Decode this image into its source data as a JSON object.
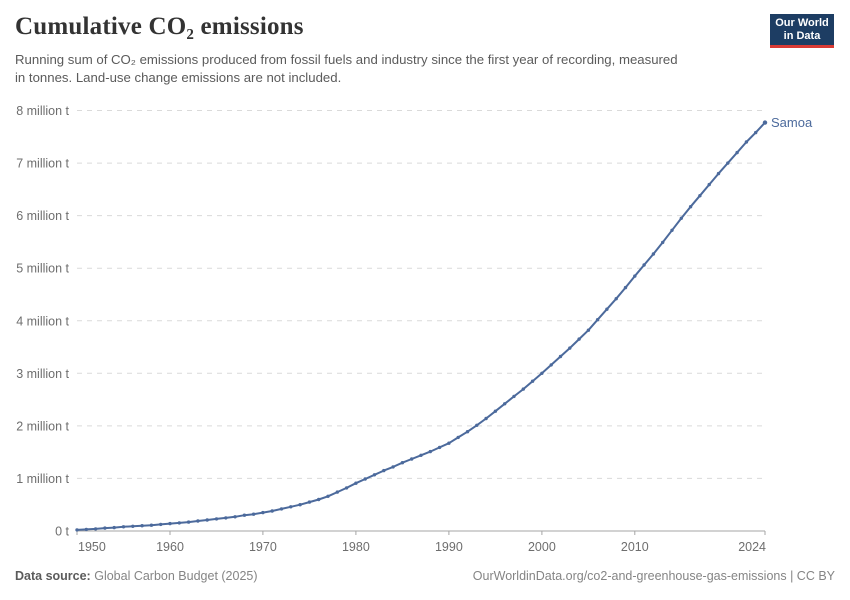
{
  "header": {
    "title": "Cumulative CO₂ emissions",
    "subtitle": "Running sum of CO₂ emissions produced from fossil fuels and industry since the first year of recording, measured in tonnes. Land-use change emissions are not included.",
    "logo_line1": "Our World",
    "logo_line2": "in Data"
  },
  "footer": {
    "source_label": "Data source:",
    "source_value": "Global Carbon Budget (2025)",
    "link": "OurWorldinData.org/co2-and-greenhouse-gas-emissions | CC BY"
  },
  "colors": {
    "line": "#4c6a9c",
    "end_label": "#4c6a9c",
    "grid": "#dadada",
    "axis_line": "#a5a5a5",
    "axis_text": "#6e6e6e",
    "title_text": "#333333",
    "subtitle_text": "#5b5b5b",
    "footer_text": "#858585",
    "logo_bg": "#1d3d63",
    "logo_underline": "#d93a34"
  },
  "chart_data": {
    "type": "line",
    "title": "Cumulative CO₂ emissions",
    "unit": "tonnes",
    "end_label": "Samoa",
    "grid": "horizontal-dashed",
    "legend_position": "end-of-line-label",
    "xlim": [
      1950,
      2024
    ],
    "ylim_million_t": [
      0,
      8
    ],
    "x_ticks": [
      1950,
      1960,
      1970,
      1980,
      1990,
      2000,
      2010,
      2024
    ],
    "y_ticks": [
      {
        "value": 0,
        "label": "0 t"
      },
      {
        "value": 1,
        "label": "1 million t"
      },
      {
        "value": 2,
        "label": "2 million t"
      },
      {
        "value": 3,
        "label": "3 million t"
      },
      {
        "value": 4,
        "label": "4 million t"
      },
      {
        "value": 5,
        "label": "5 million t"
      },
      {
        "value": 6,
        "label": "6 million t"
      },
      {
        "value": 7,
        "label": "7 million t"
      },
      {
        "value": 8,
        "label": "8 million t"
      }
    ],
    "x": [
      1950,
      1951,
      1952,
      1953,
      1954,
      1955,
      1956,
      1957,
      1958,
      1959,
      1960,
      1961,
      1962,
      1963,
      1964,
      1965,
      1966,
      1967,
      1968,
      1969,
      1970,
      1971,
      1972,
      1973,
      1974,
      1975,
      1976,
      1977,
      1978,
      1979,
      1980,
      1981,
      1982,
      1983,
      1984,
      1985,
      1986,
      1987,
      1988,
      1989,
      1990,
      1991,
      1992,
      1993,
      1994,
      1995,
      1996,
      1997,
      1998,
      1999,
      2000,
      2001,
      2002,
      2003,
      2004,
      2005,
      2006,
      2007,
      2008,
      2009,
      2010,
      2011,
      2012,
      2013,
      2014,
      2015,
      2016,
      2017,
      2018,
      2019,
      2020,
      2021,
      2022,
      2023,
      2024
    ],
    "series": [
      {
        "name": "Samoa",
        "values_million_tonnes": [
          0.02,
          0.03,
          0.04,
          0.055,
          0.065,
          0.08,
          0.09,
          0.1,
          0.11,
          0.125,
          0.14,
          0.155,
          0.17,
          0.19,
          0.21,
          0.23,
          0.25,
          0.27,
          0.3,
          0.32,
          0.35,
          0.38,
          0.42,
          0.46,
          0.5,
          0.55,
          0.6,
          0.66,
          0.74,
          0.82,
          0.91,
          0.99,
          1.07,
          1.15,
          1.22,
          1.3,
          1.37,
          1.44,
          1.51,
          1.59,
          1.67,
          1.78,
          1.89,
          2.01,
          2.14,
          2.28,
          2.42,
          2.56,
          2.7,
          2.85,
          3.0,
          3.16,
          3.32,
          3.48,
          3.65,
          3.82,
          4.02,
          4.22,
          4.42,
          4.63,
          4.85,
          5.06,
          5.27,
          5.49,
          5.72,
          5.95,
          6.17,
          6.38,
          6.59,
          6.8,
          7.0,
          7.2,
          7.4,
          7.58,
          7.77
        ]
      }
    ]
  }
}
